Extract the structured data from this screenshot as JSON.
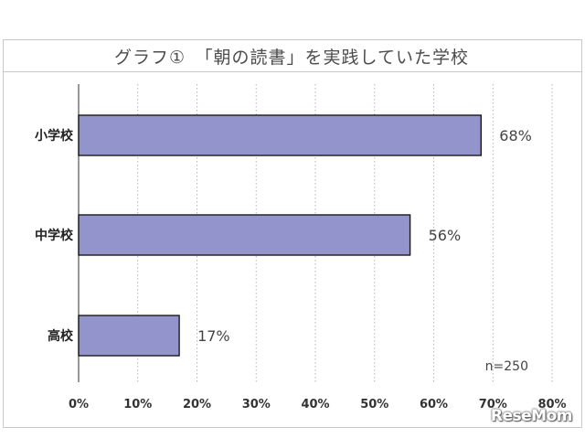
{
  "chart_data": {
    "type": "bar",
    "orientation": "horizontal",
    "title": "グラフ①　「朝の読書」を実践していた学校",
    "categories": [
      "小学校",
      "中学校",
      "高校"
    ],
    "values": [
      68,
      56,
      17
    ],
    "value_labels": [
      "68%",
      "56%",
      "17%"
    ],
    "xlim": [
      0,
      80
    ],
    "xticks": [
      0,
      10,
      20,
      30,
      40,
      50,
      60,
      70,
      80
    ],
    "xtick_labels": [
      "0%",
      "10%",
      "20%",
      "30%",
      "40%",
      "50%",
      "60%",
      "70%",
      "80%"
    ],
    "xlabel": "",
    "ylabel": "",
    "grid": "vertical dotted",
    "annotation": "n=250",
    "bar_color": "#9494cc"
  },
  "watermark": "ReseMom"
}
